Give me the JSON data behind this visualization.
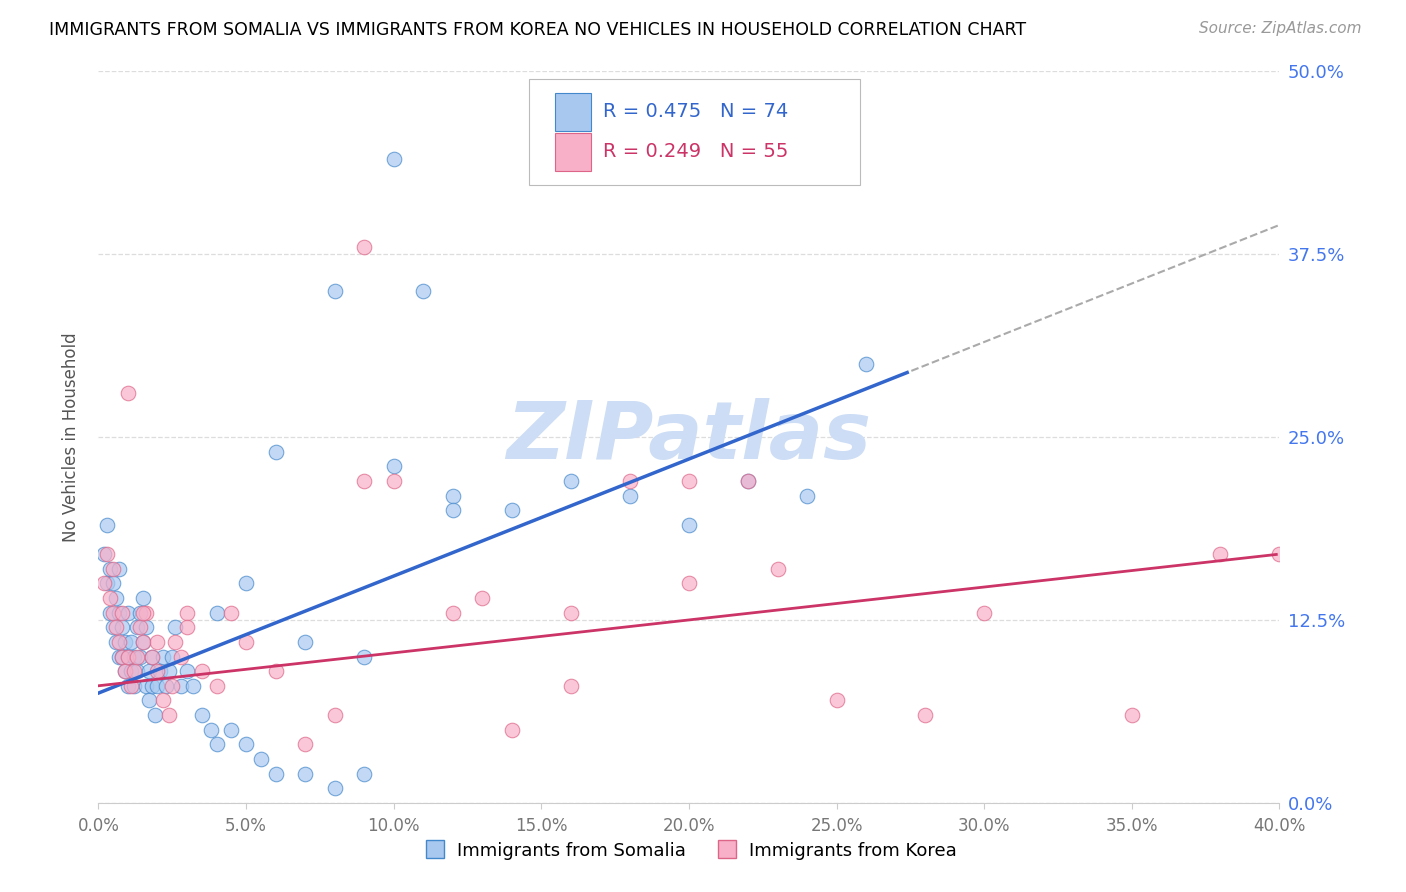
{
  "title": "IMMIGRANTS FROM SOMALIA VS IMMIGRANTS FROM KOREA NO VEHICLES IN HOUSEHOLD CORRELATION CHART",
  "source": "Source: ZipAtlas.com",
  "ylabel": "No Vehicles in Household",
  "legend_label1": "Immigrants from Somalia",
  "legend_label2": "Immigrants from Korea",
  "R1": 0.475,
  "N1": 74,
  "R2": 0.249,
  "N2": 55,
  "color1": "#a8c8f0",
  "color2": "#f8b0c8",
  "edge_color1": "#4488cc",
  "edge_color2": "#dd6688",
  "line_color1": "#3366cc",
  "line_color2": "#cc3366",
  "dash_color": "#aaaaaa",
  "watermark": "ZIPatlas",
  "watermark_color": "#ccddf5",
  "xlim": [
    0.0,
    0.4
  ],
  "ylim": [
    0.0,
    0.5
  ],
  "xtick_vals": [
    0.0,
    0.05,
    0.1,
    0.15,
    0.2,
    0.25,
    0.3,
    0.35,
    0.4
  ],
  "ytick_vals": [
    0.0,
    0.125,
    0.25,
    0.375,
    0.5
  ],
  "ytick_color": "#4477ee",
  "xtick_color": "#777777",
  "grid_color": "#dddddd",
  "background": "#ffffff",
  "title_fontsize": 12.5,
  "source_fontsize": 11,
  "ytick_fontsize": 13,
  "xtick_fontsize": 12,
  "ylabel_fontsize": 12,
  "marker_size": 110,
  "marker_alpha": 0.7,
  "trend_lw1": 2.5,
  "trend_lw2": 2.0,
  "dash_start_x": 0.275,
  "somalia_x": [
    0.002,
    0.003,
    0.003,
    0.004,
    0.004,
    0.005,
    0.005,
    0.006,
    0.006,
    0.007,
    0.007,
    0.007,
    0.008,
    0.008,
    0.009,
    0.009,
    0.01,
    0.01,
    0.01,
    0.011,
    0.011,
    0.012,
    0.012,
    0.013,
    0.013,
    0.014,
    0.014,
    0.015,
    0.015,
    0.016,
    0.016,
    0.017,
    0.017,
    0.018,
    0.018,
    0.019,
    0.02,
    0.021,
    0.022,
    0.023,
    0.024,
    0.025,
    0.026,
    0.028,
    0.03,
    0.032,
    0.035,
    0.038,
    0.04,
    0.045,
    0.05,
    0.055,
    0.06,
    0.07,
    0.08,
    0.09,
    0.1,
    0.11,
    0.12,
    0.14,
    0.16,
    0.18,
    0.2,
    0.22,
    0.24,
    0.26,
    0.08,
    0.1,
    0.12,
    0.06,
    0.04,
    0.05,
    0.07,
    0.09
  ],
  "somalia_y": [
    0.17,
    0.19,
    0.15,
    0.16,
    0.13,
    0.15,
    0.12,
    0.14,
    0.11,
    0.13,
    0.1,
    0.16,
    0.1,
    0.12,
    0.09,
    0.11,
    0.08,
    0.1,
    0.13,
    0.09,
    0.11,
    0.08,
    0.1,
    0.09,
    0.12,
    0.1,
    0.13,
    0.11,
    0.14,
    0.12,
    0.08,
    0.09,
    0.07,
    0.1,
    0.08,
    0.06,
    0.08,
    0.09,
    0.1,
    0.08,
    0.09,
    0.1,
    0.12,
    0.08,
    0.09,
    0.08,
    0.06,
    0.05,
    0.04,
    0.05,
    0.04,
    0.03,
    0.02,
    0.02,
    0.01,
    0.02,
    0.44,
    0.35,
    0.21,
    0.2,
    0.22,
    0.21,
    0.19,
    0.22,
    0.21,
    0.3,
    0.35,
    0.23,
    0.2,
    0.24,
    0.13,
    0.15,
    0.11,
    0.1
  ],
  "korea_x": [
    0.002,
    0.003,
    0.004,
    0.005,
    0.006,
    0.007,
    0.008,
    0.009,
    0.01,
    0.011,
    0.012,
    0.013,
    0.014,
    0.015,
    0.016,
    0.018,
    0.02,
    0.022,
    0.024,
    0.026,
    0.028,
    0.03,
    0.035,
    0.04,
    0.045,
    0.05,
    0.06,
    0.07,
    0.08,
    0.09,
    0.1,
    0.12,
    0.14,
    0.16,
    0.18,
    0.2,
    0.22,
    0.25,
    0.28,
    0.3,
    0.35,
    0.38,
    0.4,
    0.09,
    0.13,
    0.16,
    0.2,
    0.23,
    0.005,
    0.008,
    0.01,
    0.015,
    0.02,
    0.025,
    0.03
  ],
  "korea_y": [
    0.15,
    0.17,
    0.14,
    0.13,
    0.12,
    0.11,
    0.1,
    0.09,
    0.1,
    0.08,
    0.09,
    0.1,
    0.12,
    0.11,
    0.13,
    0.1,
    0.09,
    0.07,
    0.06,
    0.11,
    0.1,
    0.13,
    0.09,
    0.08,
    0.13,
    0.11,
    0.09,
    0.04,
    0.06,
    0.38,
    0.22,
    0.13,
    0.05,
    0.08,
    0.22,
    0.15,
    0.22,
    0.07,
    0.06,
    0.13,
    0.06,
    0.17,
    0.17,
    0.22,
    0.14,
    0.13,
    0.22,
    0.16,
    0.16,
    0.13,
    0.28,
    0.13,
    0.11,
    0.08,
    0.12
  ]
}
